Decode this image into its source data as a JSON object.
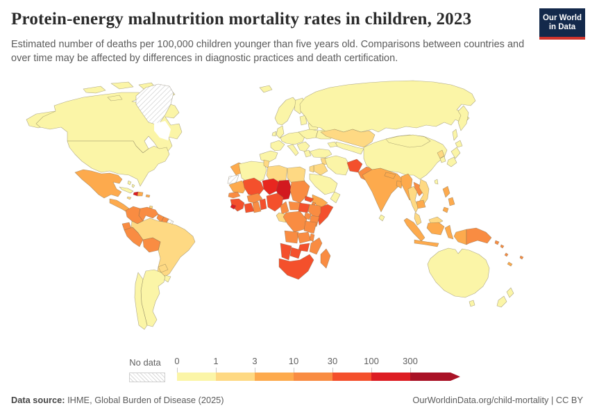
{
  "header": {
    "title": "Protein-energy malnutrition mortality rates in children, 2023",
    "subtitle": "Estimated number of deaths per 100,000 children younger than five years old. Comparisons between countries and over time may be affected by differences in diagnostic practices and death certification.",
    "logo": {
      "line1": "Our World",
      "line2": "in Data",
      "bg_color": "#13294b",
      "accent_color": "#d0342c"
    }
  },
  "legend": {
    "no_data_label": "No data",
    "ticks": [
      "0",
      "1",
      "3",
      "10",
      "30",
      "100",
      "300"
    ]
  },
  "footer": {
    "source_label": "Data source:",
    "source_text": " IHME, Global Burden of Disease (2025)",
    "right_text": "OurWorldinData.org/child-mortality | CC BY"
  },
  "chart_data": {
    "type": "choropleth_map",
    "title": "Protein-energy malnutrition mortality rates in children, 2023",
    "unit": "deaths per 100,000 children younger than five years old",
    "year": "2023",
    "legend_scale": "log-binned",
    "legend_position": "bottom",
    "no_data_style": "white-diagonal-hatch",
    "bins": [
      {
        "range": "0-1",
        "color": "#fbf5a7"
      },
      {
        "range": "1-3",
        "color": "#fed983"
      },
      {
        "range": "3-10",
        "color": "#fdaa4d"
      },
      {
        "range": "10-30",
        "color": "#f98c42"
      },
      {
        "range": "30-100",
        "color": "#f4502c"
      },
      {
        "range": "100-300",
        "color": "#dd1d23"
      },
      {
        "range": "300+",
        "color": "#a91226"
      }
    ],
    "region_color_overrides": {
      "chad": "#d2191f",
      "niger": "#e8271f"
    },
    "regions": {
      "canada": "0-1",
      "united-states": "0-1",
      "alaska": "0-1",
      "arctic-islands": "0-1",
      "greenland": "no-data",
      "mexico": "3-10",
      "central-america": "3-10",
      "cuba": "0-1",
      "bahamas": "0-1",
      "haiti": "100-300",
      "dominican-republic": "3-10",
      "jamaica": "1-3",
      "puerto-rico": "3-10",
      "trinidad": "1-3",
      "colombia": "10-30",
      "venezuela": "10-30",
      "guyana": "10-30",
      "suriname": "10-30",
      "french-guiana": "no-data",
      "ecuador": "10-30",
      "peru": "10-30",
      "bolivia": "10-30",
      "brazil": "1-3",
      "paraguay": "1-3",
      "uruguay": "0-1",
      "argentina": "0-1",
      "chile": "0-1",
      "iceland": "0-1",
      "united-kingdom": "0-1",
      "ireland": "0-1",
      "iberia": "0-1",
      "france": "0-1",
      "central-europe": "0-1",
      "italy": "0-1",
      "scandinavia": "0-1",
      "finland": "0-1",
      "baltics": "0-1",
      "poland-east": "0-1",
      "belarus": "0-1",
      "ukraine": "0-1",
      "balkans": "0-1",
      "greece": "0-1",
      "russia": "0-1",
      "kamchatka": "0-1",
      "sakhalin": "0-1",
      "kazakhstan": "1-3",
      "uzbekistan-turkmenistan": "0-1",
      "kyrgyzstan-tajikistan": "0-1",
      "caucasus": "0-1",
      "turkey": "0-1",
      "syria": "1-3",
      "iraq": "1-3",
      "jordan": "1-3",
      "saudi-arabia": "0-1",
      "yemen": "3-10",
      "oman": "0-1",
      "iran": "0-1",
      "afghanistan": "30-100",
      "pakistan": "10-30",
      "india": "3-10",
      "nepal": "3-10",
      "bangladesh": "3-10",
      "sri-lanka": "0-1",
      "china": "0-1",
      "mongolia": "0-1",
      "north-korea": "1-3",
      "south-korea": "0-1",
      "japan": "0-1",
      "japan-south": "0-1",
      "hokkaido": "0-1",
      "taiwan": "0-1",
      "myanmar": "3-10",
      "thailand": "1-3",
      "laos": "10-30",
      "vietnam": "1-3",
      "cambodia": "3-10",
      "malay-peninsula": "1-3",
      "sumatra": "3-10",
      "java": "3-10",
      "borneo-indonesia": "3-10",
      "borneo-malaysia": "1-3",
      "sulawesi": "3-10",
      "philippines-luzon": "3-10",
      "philippines-visayas": "3-10",
      "philippines-mindanao": "3-10",
      "new-guinea-west": "3-10",
      "papua-new-guinea": "10-30",
      "solomon-islands": "10-30",
      "vanuatu": "10-30",
      "fiji": "10-30",
      "new-caledonia": "3-10",
      "australia": "0-1",
      "tasmania": "0-1",
      "new-zealand-north": "0-1",
      "new-zealand-south": "0-1",
      "morocco": "3-10",
      "western-sahara": "no-data",
      "algeria": "0-1",
      "tunisia": "1-3",
      "libya": "1-3",
      "egypt": "1-3",
      "mauritania": "3-10",
      "mali": "30-100",
      "niger": "100-300",
      "chad": "100-300",
      "sudan": "10-30",
      "eritrea": "30-100",
      "djibouti": "10-30",
      "ethiopia": "10-30",
      "somalia": "30-100",
      "senegal": "10-30",
      "guinea": "30-100",
      "sierra-leone": "100-300",
      "cote-divoire": "30-100",
      "ghana": "10-30",
      "togo-benin": "30-100",
      "burkina-faso": "10-30",
      "nigeria": "30-100",
      "cameroon": "10-30",
      "central-african-republic": "10-30",
      "south-sudan": "30-100",
      "uganda": "10-30",
      "kenya": "10-30",
      "drc": "10-30",
      "congo-gabon": "1-3",
      "tanzania": "10-30",
      "angola": "10-30",
      "zambia": "10-30",
      "malawi": "10-30",
      "mozambique": "10-30",
      "zimbabwe": "30-100",
      "botswana": "30-100",
      "namibia": "30-100",
      "south-africa": "30-100",
      "madagascar": "10-30"
    }
  }
}
